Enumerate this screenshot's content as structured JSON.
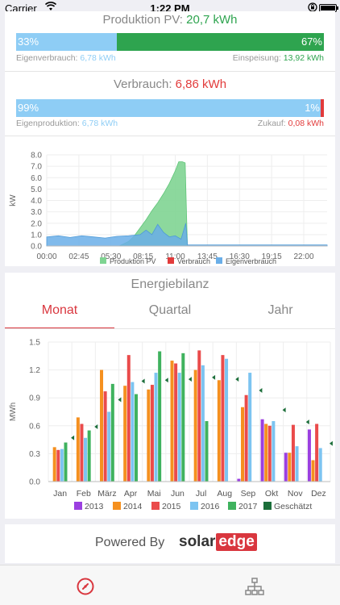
{
  "status": {
    "carrier": "Carrier",
    "time": "1:22 PM"
  },
  "pv": {
    "title": "Produktion PV:",
    "value": "20,7 kWh",
    "bar_left": "33%",
    "bar_right": "67%",
    "left_label": "Eigenverbrauch:",
    "left_value": "6,78 kWh",
    "right_label": "Einspeisung:",
    "right_value": "13,92 kWh"
  },
  "consumption": {
    "title": "Verbrauch:",
    "value": "6,86 kWh",
    "bar_left": "99%",
    "bar_right": "1%",
    "left_label": "Eigenproduktion:",
    "left_value": "6,78 kWh",
    "right_label": "Zukauf:",
    "right_value": "0,08 kWh"
  },
  "energy": {
    "title": "Energiebilanz",
    "tabs": [
      "Monat",
      "Quartal",
      "Jahr"
    ],
    "active_tab": 0
  },
  "footer": {
    "powered_by": "Powered By",
    "logo_solar": "solar",
    "logo_edge": "edge"
  },
  "bottom_nav": {
    "items": [
      "dashboard-icon",
      "site-layout-icon"
    ]
  },
  "colors": {
    "pv_green": "#2ea44f",
    "light_blue": "#8ecdf5",
    "red": "#e23b3b",
    "area_green": "#7fd492",
    "area_blue": "#6aaee8",
    "accent": "#d9363e"
  },
  "chart_data": [
    {
      "type": "area",
      "ylabel": "kW",
      "ylim": [
        0,
        8
      ],
      "yticks": [
        "0.0",
        "1.0",
        "2.0",
        "3.0",
        "4.0",
        "5.0",
        "6.0",
        "7.0",
        "8.0"
      ],
      "xticks": [
        "00:00",
        "02:45",
        "05:30",
        "08:15",
        "11:00",
        "13:45",
        "16:30",
        "19:15",
        "22:00"
      ],
      "x_hours": [
        0,
        2.75,
        5.5,
        8.25,
        11,
        13.75,
        16.5,
        19.25,
        22
      ],
      "legend": [
        "Produktion PV",
        "Verbrauch",
        "Eigenverbrauch"
      ],
      "series": [
        {
          "name": "Produktion PV",
          "color": "#7fd492",
          "x": [
            0,
            6.2,
            7.0,
            7.5,
            8.0,
            8.5,
            9.0,
            9.5,
            10.0,
            10.5,
            11.0,
            11.3,
            11.6,
            11.85,
            12.0,
            12.05,
            24
          ],
          "y": [
            0,
            0,
            0.4,
            0.9,
            1.6,
            2.3,
            3.1,
            3.8,
            4.6,
            5.5,
            6.6,
            7.4,
            7.4,
            7.3,
            1.5,
            0,
            0
          ]
        },
        {
          "name": "Eigenverbrauch",
          "color": "#6aaee8",
          "x": [
            0,
            1,
            2,
            3,
            4,
            5,
            6,
            7,
            8,
            8.5,
            9,
            9.5,
            10,
            10.5,
            11,
            11.5,
            11.9,
            12.05,
            13,
            24
          ],
          "y": [
            0.8,
            0.9,
            0.75,
            0.9,
            0.8,
            0.7,
            0.85,
            0.9,
            1.0,
            1.4,
            1.0,
            1.9,
            1.2,
            0.8,
            0.9,
            0.6,
            2.0,
            0.1,
            0.1,
            0.1
          ]
        },
        {
          "name": "Verbrauch",
          "color": "#e23b3b",
          "x": [
            0,
            24
          ],
          "y": [
            0,
            0
          ]
        }
      ]
    },
    {
      "type": "bar",
      "ylabel": "MWh",
      "ylim": [
        0,
        1.5
      ],
      "yticks": [
        "0.0",
        "0.3",
        "0.6",
        "0.9",
        "1.2",
        "1.5"
      ],
      "categories": [
        "Jan",
        "Feb",
        "März",
        "Apr",
        "Mai",
        "Jun",
        "Jul",
        "Aug",
        "Sep",
        "Okt",
        "Nov",
        "Dez"
      ],
      "series": [
        {
          "name": "2013",
          "color": "#9b3fe0",
          "values": [
            0,
            0,
            0,
            0,
            0,
            0,
            0,
            0,
            0.03,
            0.67,
            0.31,
            0.56
          ]
        },
        {
          "name": "2014",
          "color": "#f5901f",
          "values": [
            0.37,
            0.69,
            1.2,
            1.03,
            0.99,
            1.3,
            1.2,
            1.09,
            0.8,
            0.62,
            0.31,
            0.23
          ]
        },
        {
          "name": "2015",
          "color": "#ea4b4b",
          "values": [
            0.34,
            0.62,
            0.97,
            1.36,
            1.04,
            1.27,
            1.41,
            1.36,
            0.93,
            0.6,
            0.61,
            0.62
          ]
        },
        {
          "name": "2016",
          "color": "#7cc4f1",
          "values": [
            0.35,
            0.47,
            0.75,
            1.07,
            1.17,
            1.17,
            1.25,
            1.32,
            1.17,
            0.65,
            0.38,
            0.36
          ]
        },
        {
          "name": "2017",
          "color": "#3fb25e",
          "values": [
            0.42,
            0.55,
            1.05,
            0.94,
            1.4,
            1.38,
            0.65,
            0,
            0,
            0,
            0,
            0
          ]
        },
        {
          "name": "Geschätzt",
          "color": "#1b6e3a",
          "values": [
            0.47,
            0.59,
            0.88,
            1.08,
            1.09,
            1.1,
            1.12,
            1.1,
            0.98,
            0.77,
            0.64,
            0.41
          ]
        }
      ]
    }
  ]
}
